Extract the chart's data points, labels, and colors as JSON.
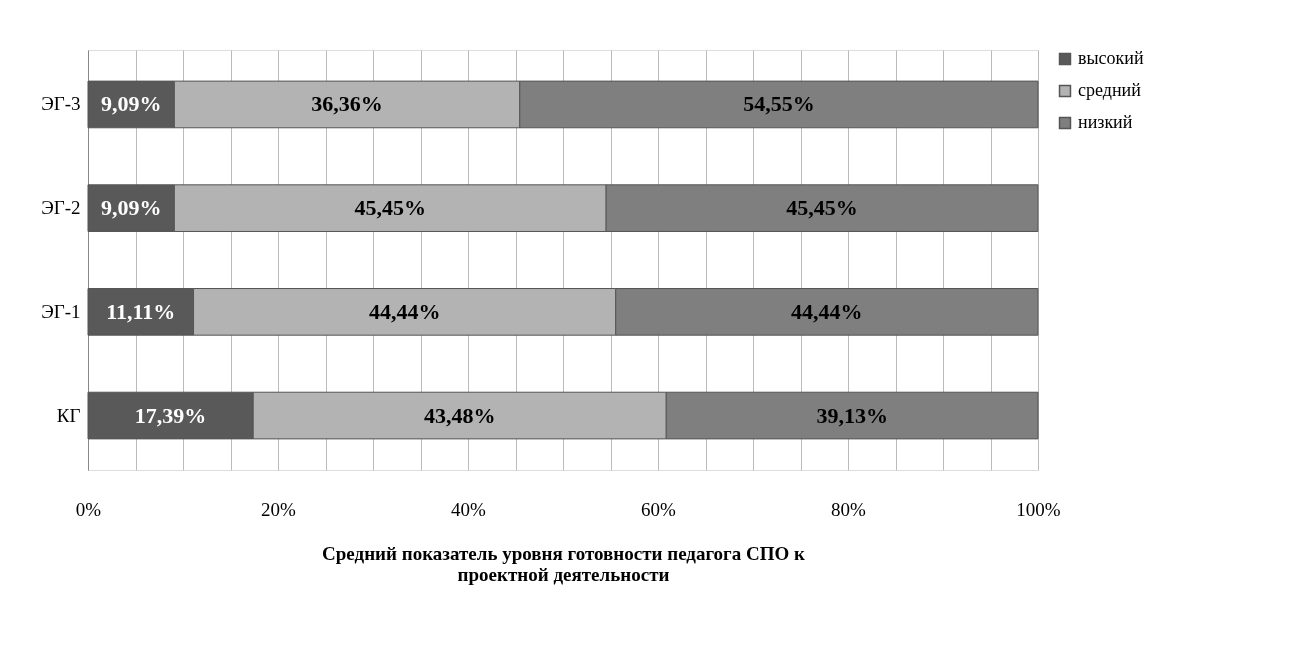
{
  "chart_data": {
    "type": "bar",
    "orientation": "horizontal",
    "stacked": true,
    "xlabel": "Средний показатель уровня готовности педагога  СПО к проектной деятельности",
    "categories": [
      "ЭГ-3",
      "ЭГ-2",
      "ЭГ-1",
      "КГ"
    ],
    "series": [
      {
        "name": "высокий",
        "color": "#595959",
        "values": [
          9.09,
          9.09,
          11.11,
          17.39
        ],
        "value_labels": [
          "9,09%",
          "9,09%",
          "11,11%",
          "17,39%"
        ]
      },
      {
        "name": "средний",
        "color": "#b3b3b3",
        "values": [
          36.36,
          45.45,
          44.44,
          43.48
        ],
        "value_labels": [
          "36,36%",
          "45,45%",
          "44,44%",
          "43,48%"
        ]
      },
      {
        "name": "низкий",
        "color": "#7f7f7f",
        "values": [
          54.55,
          45.45,
          44.44,
          39.13
        ],
        "value_labels": [
          "54,55%",
          "45,45%",
          "44,44%",
          "39,13%"
        ]
      }
    ],
    "xlim": [
      0,
      100
    ],
    "xticks": [
      {
        "value": 0,
        "label": "0%"
      },
      {
        "value": 5,
        "label": null
      },
      {
        "value": 10,
        "label": null
      },
      {
        "value": 15,
        "label": null
      },
      {
        "value": 20,
        "label": "20%"
      },
      {
        "value": 25,
        "label": null
      },
      {
        "value": 30,
        "label": null
      },
      {
        "value": 35,
        "label": null
      },
      {
        "value": 40,
        "label": "40%"
      },
      {
        "value": 45,
        "label": null
      },
      {
        "value": 50,
        "label": null
      },
      {
        "value": 55,
        "label": null
      },
      {
        "value": 60,
        "label": "60%"
      },
      {
        "value": 65,
        "label": null
      },
      {
        "value": 70,
        "label": null
      },
      {
        "value": 75,
        "label": null
      },
      {
        "value": 80,
        "label": "80%"
      },
      {
        "value": 85,
        "label": null
      },
      {
        "value": 90,
        "label": null
      },
      {
        "value": 95,
        "label": null
      },
      {
        "value": 100,
        "label": "100%"
      }
    ],
    "grid": "x",
    "legend": "right"
  }
}
